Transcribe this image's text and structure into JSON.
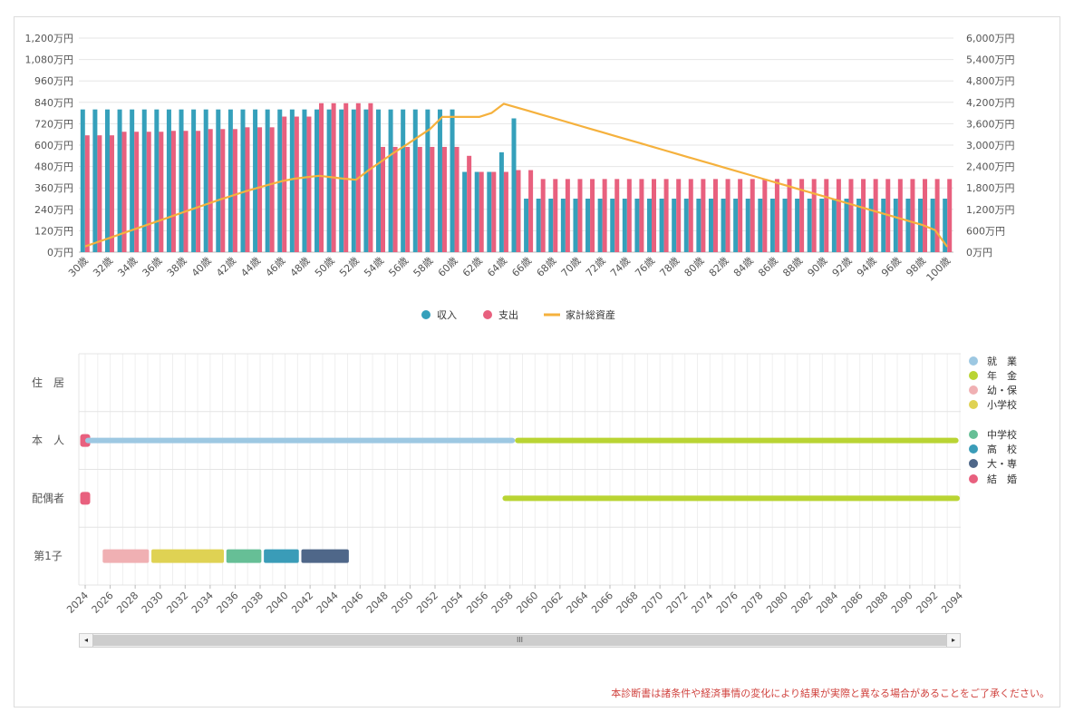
{
  "chart_data": [
    {
      "type": "bar",
      "categories_every_other_label": [
        "30歳",
        "32歳",
        "34歳",
        "36歳",
        "38歳",
        "40歳",
        "42歳",
        "44歳",
        "46歳",
        "48歳",
        "50歳",
        "52歳",
        "54歳",
        "56歳",
        "58歳",
        "60歳",
        "62歳",
        "64歳",
        "66歳",
        "68歳",
        "70歳",
        "72歳",
        "74歳",
        "76歳",
        "78歳",
        "80歳",
        "82歳",
        "84歳",
        "86歳",
        "88歳",
        "90歳",
        "92歳",
        "94歳",
        "96歳",
        "98歳",
        "100歳"
      ],
      "age_start": 30,
      "age_end": 100,
      "y_left_ticks": [
        "0万円",
        "120万円",
        "240万円",
        "360万円",
        "480万円",
        "600万円",
        "720万円",
        "840万円",
        "960万円",
        "1,080万円",
        "1,200万円"
      ],
      "y_left_range": [
        0,
        1200
      ],
      "y_right_ticks": [
        "0万円",
        "600万円",
        "1,200万円",
        "1,800万円",
        "2,400万円",
        "3,000万円",
        "3,600万円",
        "4,200万円",
        "4,800万円",
        "5,400万円",
        "6,000万円"
      ],
      "y_right_range": [
        0,
        6000
      ],
      "grid": true,
      "legend_position": "bottom",
      "series": [
        {
          "name": "収入",
          "kind": "bar",
          "color": "#35a0bb",
          "values": [
            800,
            800,
            800,
            800,
            800,
            800,
            800,
            800,
            800,
            800,
            800,
            800,
            800,
            800,
            800,
            800,
            800,
            800,
            800,
            800,
            800,
            800,
            800,
            800,
            800,
            800,
            800,
            800,
            800,
            800,
            800,
            450,
            450,
            450,
            560,
            750,
            300,
            300,
            300,
            300,
            300,
            300,
            300,
            300,
            300,
            300,
            300,
            300,
            300,
            300,
            300,
            300,
            300,
            300,
            300,
            300,
            300,
            300,
            300,
            300,
            300,
            300,
            300,
            300,
            300,
            300,
            300,
            300,
            300,
            300,
            300
          ]
        },
        {
          "name": "支出",
          "kind": "bar",
          "color": "#e8607e",
          "values": [
            655,
            655,
            655,
            675,
            675,
            675,
            675,
            680,
            680,
            680,
            690,
            690,
            690,
            700,
            700,
            700,
            760,
            760,
            760,
            835,
            835,
            835,
            835,
            835,
            590,
            590,
            590,
            590,
            590,
            590,
            590,
            540,
            450,
            450,
            450,
            460,
            460,
            410,
            410,
            410,
            410,
            410,
            410,
            410,
            410,
            410,
            410,
            410,
            410,
            410,
            410,
            410,
            410,
            410,
            410,
            410,
            410,
            410,
            410,
            410,
            410,
            410,
            410,
            410,
            410,
            410,
            410,
            410,
            410,
            410,
            410
          ]
        },
        {
          "name": "家計総資産",
          "kind": "line",
          "color": "#f5b13d",
          "axis": "right",
          "values": [
            160,
            280,
            400,
            520,
            640,
            760,
            880,
            1000,
            1120,
            1240,
            1360,
            1480,
            1590,
            1700,
            1800,
            1900,
            1990,
            2060,
            2100,
            2140,
            2100,
            2060,
            2030,
            2290,
            2530,
            2770,
            2990,
            3220,
            3450,
            3790,
            3790,
            3790,
            3790,
            3900,
            4160,
            4060,
            3960,
            3860,
            3760,
            3660,
            3560,
            3460,
            3360,
            3260,
            3160,
            3060,
            2960,
            2860,
            2760,
            2660,
            2560,
            2460,
            2360,
            2260,
            2160,
            2060,
            1960,
            1860,
            1760,
            1660,
            1560,
            1460,
            1360,
            1260,
            1160,
            1060,
            960,
            860,
            760,
            620,
            150
          ]
        }
      ]
    },
    {
      "type": "timeline",
      "year_start": 2024,
      "year_end": 2094,
      "x_ticks": [
        "2024",
        "2026",
        "2028",
        "2030",
        "2032",
        "2034",
        "2036",
        "2038",
        "2040",
        "2042",
        "2044",
        "2046",
        "2048",
        "2050",
        "2052",
        "2054",
        "2056",
        "2058",
        "2060",
        "2062",
        "2064",
        "2066",
        "2068",
        "2070",
        "2072",
        "2074",
        "2076",
        "2078",
        "2080",
        "2082",
        "2084",
        "2086",
        "2088",
        "2090",
        "2092",
        "2094"
      ],
      "rows": [
        {
          "label": "住　居",
          "segments": []
        },
        {
          "label": "本　人",
          "segments": [
            {
              "type": "結　婚",
              "start": 2023.6,
              "end": 2024.4
            },
            {
              "type": "就　業",
              "start": 2024.0,
              "end": 2058.4
            },
            {
              "type": "年　金",
              "start": 2058.4,
              "end": 2093.9
            }
          ]
        },
        {
          "label": "配偶者",
          "segments": [
            {
              "type": "結　婚",
              "start": 2023.6,
              "end": 2024.4
            },
            {
              "type": "年　金",
              "start": 2057.4,
              "end": 2094.0
            }
          ]
        },
        {
          "label": "第1子",
          "segments": [
            {
              "type": "幼・保",
              "start": 2025.4,
              "end": 2029.1
            },
            {
              "type": "小学校",
              "start": 2029.3,
              "end": 2035.1
            },
            {
              "type": "中学校",
              "start": 2035.3,
              "end": 2038.1
            },
            {
              "type": "高　校",
              "start": 2038.3,
              "end": 2041.1
            },
            {
              "type": "大・専",
              "start": 2041.3,
              "end": 2045.1
            }
          ]
        }
      ],
      "legend": [
        {
          "name": "就　業",
          "color": "#9dc8e2"
        },
        {
          "name": "年　金",
          "color": "#b9d433"
        },
        {
          "name": "幼・保",
          "color": "#f0b0b3"
        },
        {
          "name": "小学校",
          "color": "#dfd253"
        },
        {
          "name": "中学校",
          "color": "#66bf96"
        },
        {
          "name": "高　校",
          "color": "#3a9cb8"
        },
        {
          "name": "大・専",
          "color": "#4f6789"
        },
        {
          "name": "結　婚",
          "color": "#e8607e"
        }
      ]
    }
  ],
  "scrollbar": {
    "left_arrow": "◂",
    "right_arrow": "▸",
    "thumb_grip": "III"
  },
  "disclaimer": "本診断書は諸条件や経済事情の変化により結果が実際と異なる場合があることをご了承ください。"
}
